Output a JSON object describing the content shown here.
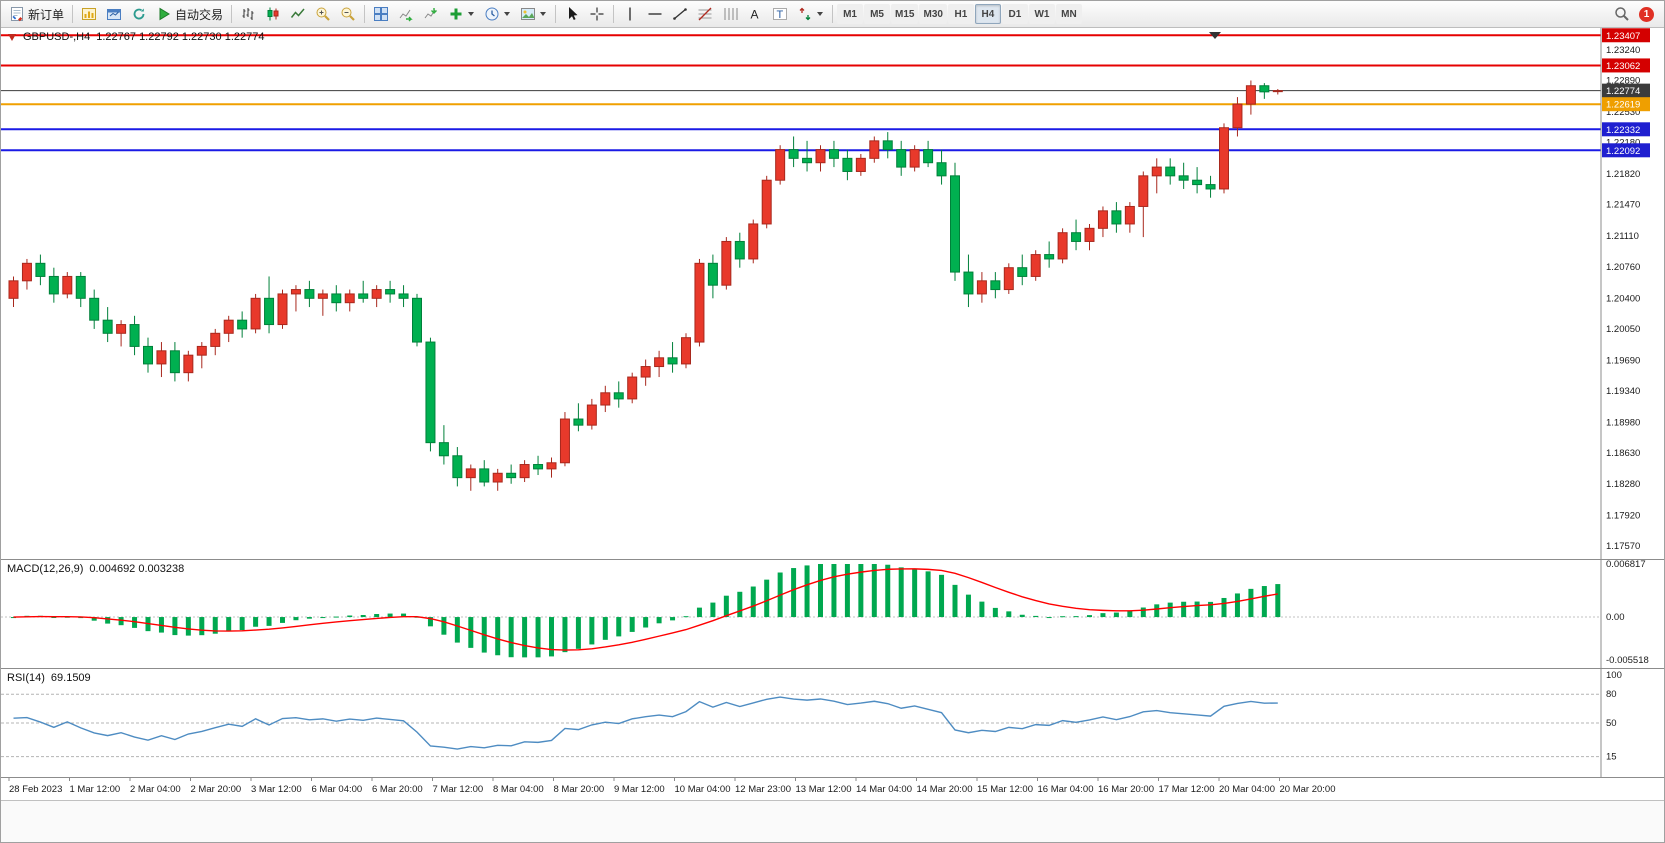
{
  "toolbar": {
    "new_order": "新订单",
    "autotrade": "自动交易",
    "timeframes": [
      "M1",
      "M5",
      "M15",
      "M30",
      "H1",
      "H4",
      "D1",
      "W1",
      "MN"
    ],
    "active_timeframe": "H4",
    "notification_count": "1",
    "icons": {
      "text_tool": "A",
      "label_tool": "T"
    }
  },
  "chart": {
    "symbol_title": "GBPUSD-,H4",
    "ohlc_title": "1.22767 1.22792 1.22730 1.22774",
    "macd_label": "MACD(12,26,9)",
    "macd_values": "0.004692 0.003238",
    "rsi_label": "RSI(14)",
    "rsi_value": "69.1509"
  },
  "chart_data": {
    "type": "candlestick",
    "symbol": "GBPUSD-",
    "timeframe": "H4",
    "last_ohlc": {
      "open": "1.22767",
      "high": "1.22792",
      "low": "1.22730",
      "close": "1.22774"
    },
    "price_range": {
      "min": 1.1742,
      "max": 1.2349
    },
    "grid_labels": [
      "1.23240",
      "1.22890",
      "1.22530",
      "1.22180",
      "1.21820",
      "1.21470",
      "1.21110",
      "1.20760",
      "1.20400",
      "1.20050",
      "1.19690",
      "1.19340",
      "1.18980",
      "1.18630",
      "1.18280",
      "1.17920",
      "1.17570"
    ],
    "hlines": [
      {
        "text": "1.23407",
        "color": "#e60000",
        "width": 2,
        "badge": "#d40000"
      },
      {
        "text": "1.23062",
        "color": "#e60000",
        "width": 2,
        "badge": "#d40000"
      },
      {
        "text": "1.22774",
        "color": "#3c3c3c",
        "width": 1,
        "badge": "#3c3c3c",
        "current": true
      },
      {
        "text": "1.22619",
        "color": "#f0a000",
        "width": 2,
        "badge": "#ef9f00"
      },
      {
        "text": "1.22332",
        "color": "#1a1ae6",
        "width": 2,
        "badge": "#1f1fd0"
      },
      {
        "text": "1.22092",
        "color": "#1a1ae6",
        "width": 2,
        "badge": "#1f1fd0"
      }
    ],
    "colors": {
      "up": "#e8392b",
      "up_border": "#a8281d",
      "down": "#00b050",
      "down_border": "#00803a",
      "macd_hist": "#00a84f",
      "macd_signal": "#ff0000",
      "rsi": "#4e8cc2"
    },
    "candles": [
      [
        1.204,
        1.2065,
        1.203,
        1.206
      ],
      [
        1.206,
        1.2085,
        1.205,
        1.208
      ],
      [
        1.208,
        1.209,
        1.2055,
        1.2065
      ],
      [
        1.2065,
        1.2075,
        1.2035,
        1.2045
      ],
      [
        1.2045,
        1.207,
        1.204,
        1.2065
      ],
      [
        1.2065,
        1.207,
        1.203,
        1.204
      ],
      [
        1.204,
        1.205,
        1.2005,
        1.2015
      ],
      [
        1.2015,
        1.203,
        1.199,
        1.2
      ],
      [
        1.2,
        1.2015,
        1.1985,
        1.201
      ],
      [
        1.201,
        1.202,
        1.1975,
        1.1985
      ],
      [
        1.1985,
        1.1995,
        1.1955,
        1.1965
      ],
      [
        1.1965,
        1.199,
        1.195,
        1.198
      ],
      [
        1.198,
        1.199,
        1.1945,
        1.1955
      ],
      [
        1.1955,
        1.198,
        1.1945,
        1.1975
      ],
      [
        1.1975,
        1.199,
        1.196,
        1.1985
      ],
      [
        1.1985,
        1.2005,
        1.1975,
        1.2
      ],
      [
        1.2,
        1.202,
        1.199,
        1.2015
      ],
      [
        1.2015,
        1.2025,
        1.1995,
        1.2005
      ],
      [
        1.2005,
        1.2045,
        1.2,
        1.204
      ],
      [
        1.204,
        1.2065,
        1.2,
        1.201
      ],
      [
        1.201,
        1.205,
        1.2005,
        1.2045
      ],
      [
        1.2045,
        1.2055,
        1.2025,
        1.205
      ],
      [
        1.205,
        1.206,
        1.203,
        1.204
      ],
      [
        1.204,
        1.205,
        1.202,
        1.2045
      ],
      [
        1.2045,
        1.2055,
        1.2025,
        1.2035
      ],
      [
        1.2035,
        1.205,
        1.2025,
        1.2045
      ],
      [
        1.2045,
        1.206,
        1.2035,
        1.204
      ],
      [
        1.204,
        1.2055,
        1.203,
        1.205
      ],
      [
        1.205,
        1.206,
        1.2035,
        1.2045
      ],
      [
        1.2045,
        1.2055,
        1.203,
        1.204
      ],
      [
        1.204,
        1.2045,
        1.1985,
        1.199
      ],
      [
        1.199,
        1.1995,
        1.1865,
        1.1875
      ],
      [
        1.1875,
        1.1895,
        1.185,
        1.186
      ],
      [
        1.186,
        1.187,
        1.1825,
        1.1835
      ],
      [
        1.1835,
        1.185,
        1.182,
        1.1845
      ],
      [
        1.1845,
        1.1855,
        1.1825,
        1.183
      ],
      [
        1.183,
        1.1845,
        1.182,
        1.184
      ],
      [
        1.184,
        1.185,
        1.1828,
        1.1835
      ],
      [
        1.1835,
        1.1855,
        1.183,
        1.185
      ],
      [
        1.185,
        1.186,
        1.1838,
        1.1845
      ],
      [
        1.1845,
        1.1858,
        1.1835,
        1.1852
      ],
      [
        1.1852,
        1.191,
        1.1848,
        1.1902
      ],
      [
        1.1902,
        1.192,
        1.1888,
        1.1895
      ],
      [
        1.1895,
        1.1925,
        1.189,
        1.1918
      ],
      [
        1.1918,
        1.194,
        1.191,
        1.1932
      ],
      [
        1.1932,
        1.1945,
        1.1915,
        1.1925
      ],
      [
        1.1925,
        1.1955,
        1.192,
        1.195
      ],
      [
        1.195,
        1.197,
        1.194,
        1.1962
      ],
      [
        1.1962,
        1.198,
        1.195,
        1.1972
      ],
      [
        1.1972,
        1.199,
        1.1955,
        1.1965
      ],
      [
        1.1965,
        1.2,
        1.196,
        1.1995
      ],
      [
        1.199,
        1.2085,
        1.1985,
        1.208
      ],
      [
        1.208,
        1.209,
        1.204,
        1.2055
      ],
      [
        1.2055,
        1.211,
        1.205,
        1.2105
      ],
      [
        1.2105,
        1.2115,
        1.2075,
        1.2085
      ],
      [
        1.2085,
        1.213,
        1.208,
        1.2125
      ],
      [
        1.2125,
        1.218,
        1.212,
        1.2175
      ],
      [
        1.2175,
        1.2215,
        1.217,
        1.221
      ],
      [
        1.221,
        1.2225,
        1.219,
        1.22
      ],
      [
        1.22,
        1.222,
        1.2185,
        1.2195
      ],
      [
        1.2195,
        1.2215,
        1.2185,
        1.221
      ],
      [
        1.221,
        1.222,
        1.219,
        1.22
      ],
      [
        1.22,
        1.221,
        1.2175,
        1.2185
      ],
      [
        1.2185,
        1.2205,
        1.218,
        1.22
      ],
      [
        1.22,
        1.2225,
        1.2195,
        1.222
      ],
      [
        1.222,
        1.223,
        1.22,
        1.221
      ],
      [
        1.221,
        1.222,
        1.218,
        1.219
      ],
      [
        1.219,
        1.2215,
        1.2185,
        1.221
      ],
      [
        1.221,
        1.222,
        1.219,
        1.2195
      ],
      [
        1.2195,
        1.221,
        1.217,
        1.218
      ],
      [
        1.218,
        1.2195,
        1.206,
        1.207
      ],
      [
        1.207,
        1.209,
        1.203,
        1.2045
      ],
      [
        1.2045,
        1.207,
        1.2035,
        1.206
      ],
      [
        1.206,
        1.207,
        1.204,
        1.205
      ],
      [
        1.205,
        1.208,
        1.2045,
        1.2075
      ],
      [
        1.2075,
        1.209,
        1.2055,
        1.2065
      ],
      [
        1.2065,
        1.2095,
        1.206,
        1.209
      ],
      [
        1.209,
        1.2105,
        1.2075,
        1.2085
      ],
      [
        1.2085,
        1.212,
        1.208,
        1.2115
      ],
      [
        1.2115,
        1.213,
        1.2095,
        1.2105
      ],
      [
        1.2105,
        1.2125,
        1.2095,
        1.212
      ],
      [
        1.212,
        1.2145,
        1.211,
        1.214
      ],
      [
        1.214,
        1.215,
        1.2115,
        1.2125
      ],
      [
        1.2125,
        1.215,
        1.2115,
        1.2145
      ],
      [
        1.2145,
        1.2185,
        1.211,
        1.218
      ],
      [
        1.218,
        1.22,
        1.216,
        1.219
      ],
      [
        1.219,
        1.22,
        1.217,
        1.218
      ],
      [
        1.218,
        1.2195,
        1.2165,
        1.2175
      ],
      [
        1.2175,
        1.219,
        1.216,
        1.217
      ],
      [
        1.217,
        1.218,
        1.2155,
        1.2165
      ],
      [
        1.2165,
        1.224,
        1.216,
        1.2235
      ],
      [
        1.2235,
        1.227,
        1.2225,
        1.2262
      ],
      [
        1.2262,
        1.2289,
        1.225,
        1.2283
      ],
      [
        1.2283,
        1.2286,
        1.2268,
        1.2276
      ],
      [
        1.22767,
        1.22792,
        1.2273,
        1.22774
      ]
    ],
    "time_labels": [
      "28 Feb 2023",
      "1 Mar 12:00",
      "2 Mar 04:00",
      "2 Mar 20:00",
      "3 Mar 12:00",
      "6 Mar 04:00",
      "6 Mar 20:00",
      "7 Mar 12:00",
      "8 Mar 04:00",
      "8 Mar 20:00",
      "9 Mar 12:00",
      "10 Mar 04:00",
      "12 Mar 23:00",
      "13 Mar 12:00",
      "14 Mar 04:00",
      "14 Mar 20:00",
      "15 Mar 12:00",
      "16 Mar 04:00",
      "16 Mar 20:00",
      "17 Mar 12:00",
      "20 Mar 04:00",
      "20 Mar 20:00"
    ],
    "macd": {
      "params": "12,26,9",
      "range": {
        "min": -0.005518,
        "max": 0.006817
      },
      "axis": [
        {
          "text": "0.006817",
          "v": 0.006817
        },
        {
          "text": "0.00",
          "v": 0
        },
        {
          "text": "-0.005518",
          "v": -0.005518
        }
      ]
    },
    "rsi": {
      "period": 14,
      "range": {
        "min": 0,
        "max": 100
      },
      "levels": [
        {
          "text": "100",
          "v": 100,
          "dashed": false
        },
        {
          "text": "80",
          "v": 80,
          "dashed": true
        },
        {
          "text": "50",
          "v": 50,
          "dashed": true
        },
        {
          "text": "15",
          "v": 15,
          "dashed": true
        }
      ]
    }
  }
}
